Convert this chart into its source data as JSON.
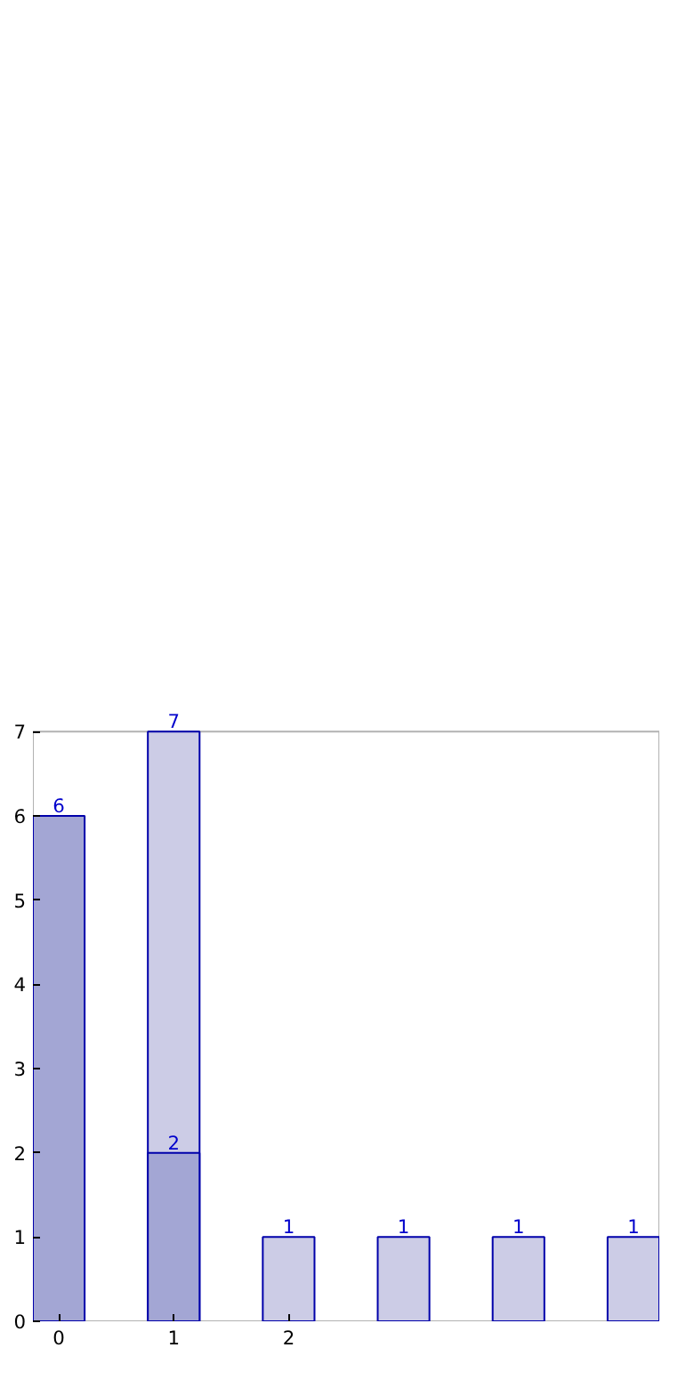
{
  "chart_data": {
    "type": "bar",
    "categories": [
      "0",
      "1",
      "2",
      null,
      null,
      null
    ],
    "series": [
      {
        "color": "#cccce6",
        "values": [
          null,
          7,
          1,
          1,
          1,
          1
        ]
      },
      {
        "color": "#a3a6d4",
        "values": [
          6,
          2,
          null,
          null,
          null,
          null
        ]
      }
    ],
    "ylim": [
      0,
      7
    ],
    "yticks": [
      0,
      1,
      2,
      3,
      4,
      5,
      6,
      7
    ],
    "data_labels": true,
    "grid": false
  }
}
